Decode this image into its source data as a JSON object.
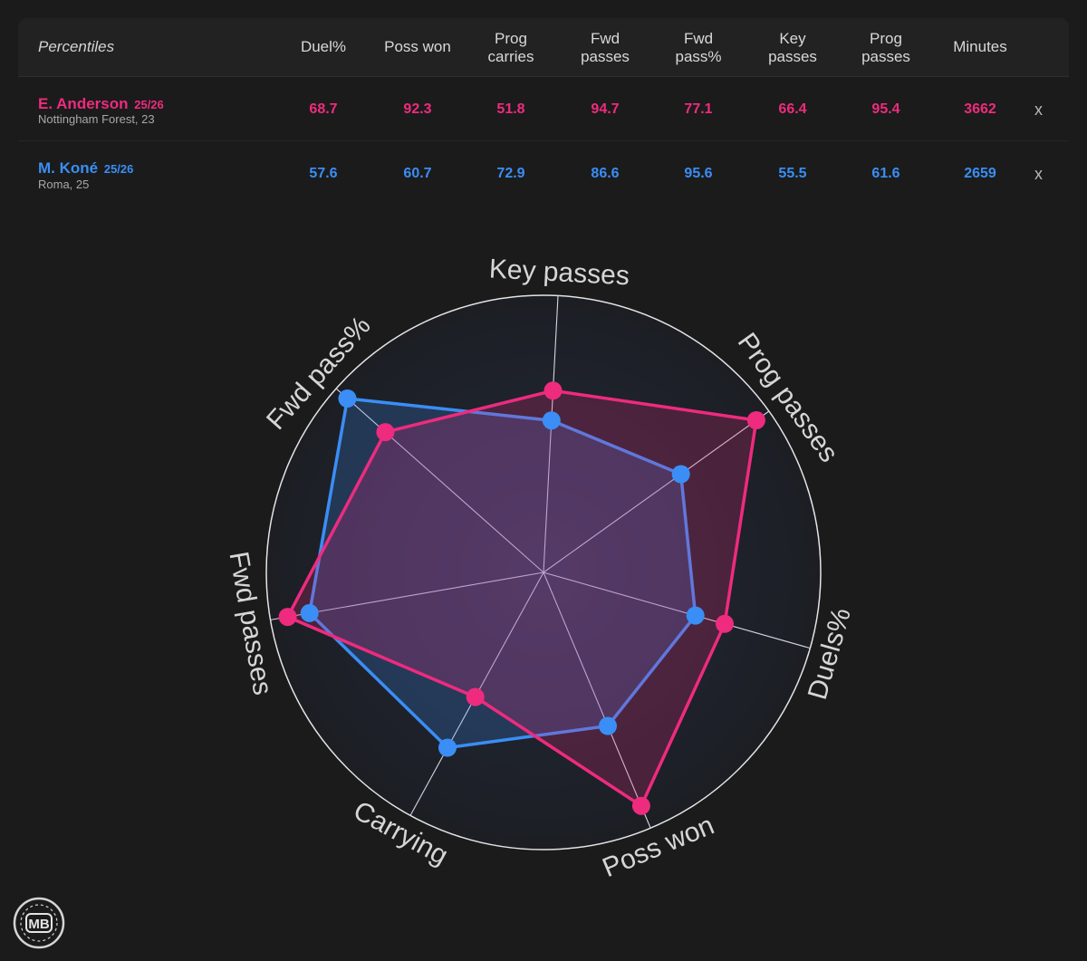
{
  "table": {
    "title": "Percentiles",
    "columns": [
      {
        "line1": "Duel%",
        "line2": ""
      },
      {
        "line1": "Poss won",
        "line2": ""
      },
      {
        "line1": "Prog",
        "line2": "carries"
      },
      {
        "line1": "Fwd",
        "line2": "passes"
      },
      {
        "line1": "Fwd",
        "line2": "pass%"
      },
      {
        "line1": "Key",
        "line2": "passes"
      },
      {
        "line1": "Prog",
        "line2": "passes"
      },
      {
        "line1": "Minutes",
        "line2": ""
      }
    ],
    "players": [
      {
        "name": "E. Anderson",
        "season": "25/26",
        "club_age": "Nottingham Forest, 23",
        "color": "#ee2b7e",
        "values": [
          "68.7",
          "92.3",
          "51.8",
          "94.7",
          "77.1",
          "66.4",
          "95.4",
          "3662"
        ],
        "remove_label": "x"
      },
      {
        "name": "M. Koné",
        "season": "25/26",
        "club_age": "Roma, 25",
        "color": "#3a8ef5",
        "values": [
          "57.6",
          "60.7",
          "72.9",
          "86.6",
          "95.6",
          "55.5",
          "61.6",
          "2659"
        ],
        "remove_label": "x"
      }
    ]
  },
  "chart_data": {
    "type": "radar",
    "axes": [
      "Key passes",
      "Prog passes",
      "Duels%",
      "Poss won",
      "Carrying",
      "Fwd passes",
      "Fwd pass%"
    ],
    "range": [
      0,
      100
    ],
    "series": [
      {
        "name": "E. Anderson",
        "color": "#ee2b7e",
        "values": [
          66.4,
          95.4,
          68.7,
          92.3,
          51.8,
          94.7,
          77.1
        ]
      },
      {
        "name": "M. Koné",
        "color": "#3a8ef5",
        "values": [
          55.5,
          61.6,
          57.6,
          60.7,
          72.9,
          86.6,
          95.6
        ]
      }
    ]
  },
  "logo": {
    "text": "MB"
  }
}
